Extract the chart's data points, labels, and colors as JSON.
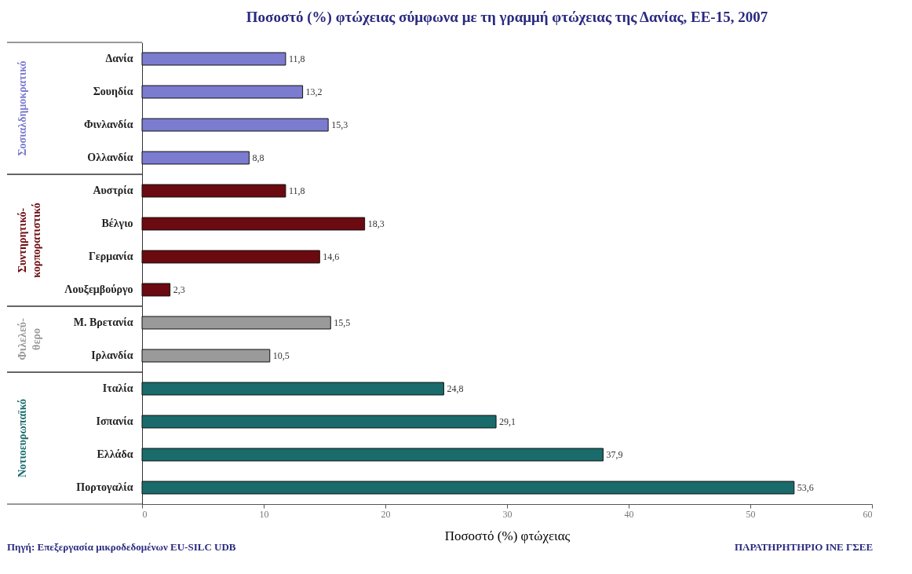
{
  "chart_data": {
    "type": "bar",
    "orientation": "horizontal",
    "title": "Ποσοστό (%) φτώχειας σύμφωνα με τη γραμμή φτώχειας της Δανίας, ΕΕ-15, 2007",
    "xlabel": "Ποσοστό (%) φτώχειας",
    "categories": [
      "Δανία",
      "Σουηδία",
      "Φινλανδία",
      "Ολλανδία",
      "Αυστρία",
      "Βέλγιο",
      "Γερμανία",
      "Λουξεμβούργο",
      "Μ. Βρετανία",
      "Ιρλανδία",
      "Ιταλία",
      "Ισπανία",
      "Ελλάδα",
      "Πορτογαλία"
    ],
    "series": [
      {
        "name": "Σοσιαλδημοκρατικό",
        "color": "#7b7bd0",
        "values": [
          11.8,
          13.2,
          15.3,
          8.8,
          null,
          null,
          null,
          null,
          null,
          null,
          null,
          null,
          null,
          null
        ],
        "value_labels": [
          "11,8",
          "13,2",
          "15,3",
          "8,8",
          null,
          null,
          null,
          null,
          null,
          null,
          null,
          null,
          null,
          null
        ]
      },
      {
        "name": "Συντηρητικό-κορπορατιστικό",
        "color": "#6b0a10",
        "values": [
          null,
          null,
          null,
          null,
          11.8,
          18.3,
          14.6,
          2.3,
          null,
          null,
          null,
          null,
          null,
          null
        ],
        "value_labels": [
          null,
          null,
          null,
          null,
          "11,8",
          "18,3",
          "14,6",
          "2,3",
          null,
          null,
          null,
          null,
          null,
          null
        ]
      },
      {
        "name": "Φιλελεύ-θερο",
        "color": "#9a9a9a",
        "values": [
          null,
          null,
          null,
          null,
          null,
          null,
          null,
          null,
          15.5,
          10.5,
          null,
          null,
          null,
          null
        ],
        "value_labels": [
          null,
          null,
          null,
          null,
          null,
          null,
          null,
          null,
          "15,5",
          "10,5",
          null,
          null,
          null,
          null
        ]
      },
      {
        "name": "Νοτιοευρωπαϊκό",
        "color": "#1a6b6b",
        "values": [
          null,
          null,
          null,
          null,
          null,
          null,
          null,
          null,
          null,
          null,
          24.8,
          29.1,
          37.9,
          53.6
        ],
        "value_labels": [
          null,
          null,
          null,
          null,
          null,
          null,
          null,
          null,
          null,
          null,
          "24,8",
          "29,1",
          "37,9",
          "53,6"
        ]
      }
    ],
    "xlim": [
      0,
      60
    ],
    "xticks": [
      0,
      10,
      20,
      30,
      40,
      50,
      60
    ],
    "grid": false,
    "legend": false,
    "annotations": [
      "Πηγή: Επεξεργασία μικροδεδομένων EU-SILC UDB",
      "ΠΑΡΑΤΗΡΗΤΗΡΙΟ ΙΝΕ ΓΣΕΕ"
    ]
  }
}
